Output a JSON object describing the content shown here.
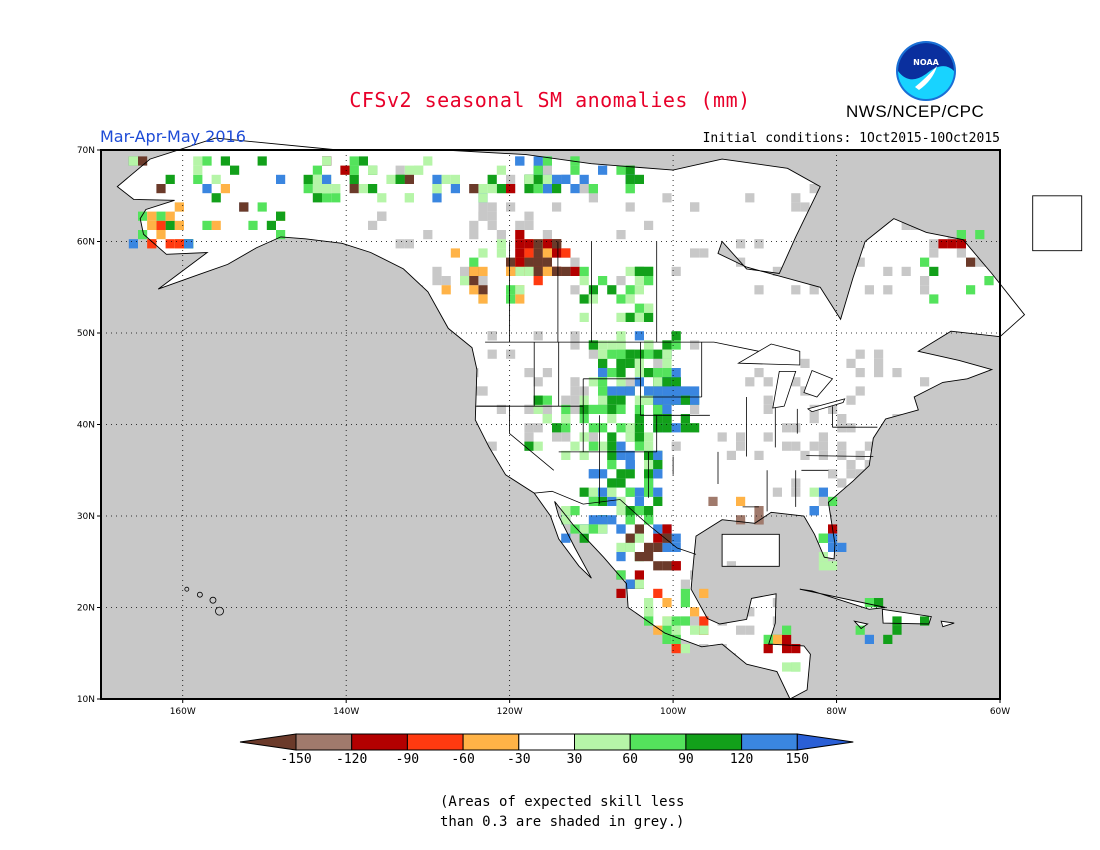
{
  "title": "CFSv2 seasonal SM anomalies (mm)",
  "title_color": "#e8002a",
  "organization": "NWS/NCEP/CPC",
  "period": "Mar-Apr-May 2016",
  "period_color": "#1d4bd6",
  "initial_conditions": "Initial conditions: 1Oct2015-10Oct2015",
  "logo_text": "NOAA",
  "logo_icon": "noaa-seal-icon",
  "map": {
    "lat_labels": [
      "70N",
      "60N",
      "50N",
      "40N",
      "30N",
      "20N",
      "10N"
    ],
    "lon_labels": [
      "160W",
      "140W",
      "120W",
      "100W",
      "80W",
      "60W"
    ],
    "lat_values": [
      70,
      60,
      50,
      40,
      30,
      20,
      10
    ],
    "lon_values": [
      -160,
      -140,
      -120,
      -100,
      -80,
      -60
    ],
    "extent": {
      "lon_min": -170,
      "lon_max": -60,
      "lat_min": 10,
      "lat_max": 70
    },
    "grid": "dotted",
    "no_skill_color": "#c8c8c8",
    "land_color": "#ffffff",
    "ocean_color": "#c8c8c8"
  },
  "colorbar": {
    "tick_labels": [
      "-150",
      "-120",
      "-90",
      "-60",
      "-30",
      "30",
      "60",
      "90",
      "120",
      "150"
    ],
    "colors": [
      "#6b3a2a",
      "#a07a6c",
      "#b30000",
      "#ff3a10",
      "#ffb347",
      "#ffffff",
      "#b6f5a8",
      "#54e35c",
      "#12a01a",
      "#3a86e0",
      "#2a5fd6"
    ]
  },
  "footnote": [
    "(Areas of expected skill less",
    "than 0.3 are shaded in grey.)"
  ]
}
